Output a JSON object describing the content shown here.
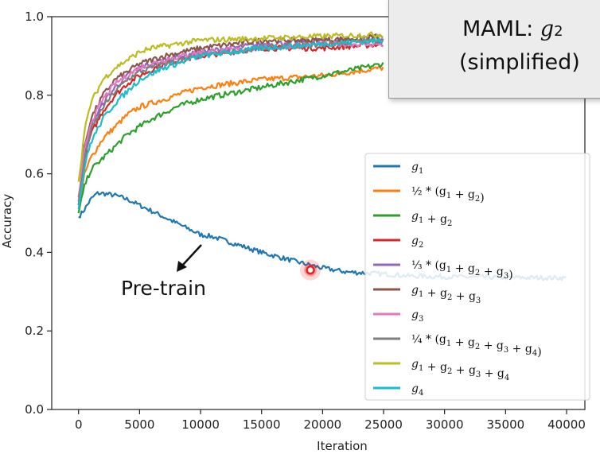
{
  "chart_data": {
    "type": "line",
    "xlabel": "Iteration",
    "ylabel": "Accuracy",
    "xlim": [
      -2200,
      41500
    ],
    "ylim": [
      0.0,
      1.0
    ],
    "x_ticks": [
      0,
      5000,
      10000,
      15000,
      20000,
      25000,
      30000,
      35000,
      40000
    ],
    "x_tick_labels": [
      "0",
      "5000",
      "10000",
      "15000",
      "20000",
      "25000",
      "30000",
      "35000",
      "40000"
    ],
    "y_ticks": [
      0.0,
      0.2,
      0.4,
      0.6,
      0.8,
      1.0
    ],
    "y_tick_labels": [
      "0.0",
      "0.2",
      "0.4",
      "0.6",
      "0.8",
      "1.0"
    ],
    "legend_position": "right",
    "series": [
      {
        "name": "g₁",
        "legend": [
          "g",
          "1",
          ""
        ],
        "color": "#1f77b4",
        "x": [
          0,
          500,
          1000,
          1500,
          2000,
          3000,
          4000,
          5000,
          7000,
          9000,
          10000,
          11000,
          12000,
          15000,
          18000,
          20000,
          22000,
          25000,
          27000,
          30000,
          35000,
          40000
        ],
        "y": [
          0.49,
          0.51,
          0.535,
          0.55,
          0.55,
          0.545,
          0.535,
          0.52,
          0.49,
          0.46,
          0.445,
          0.44,
          0.43,
          0.4,
          0.375,
          0.36,
          0.35,
          0.345,
          0.34,
          0.338,
          0.336,
          0.335
        ]
      },
      {
        "name": "½*(g₁+g₂)",
        "legend": [
          "½ * (g",
          "1",
          " + g",
          "2",
          ")"
        ],
        "color": "#ff7f0e",
        "x": [
          0,
          500,
          1000,
          2000,
          3000,
          4000,
          5000,
          7000,
          10000,
          15000,
          20000,
          25000
        ],
        "y": [
          0.5,
          0.6,
          0.64,
          0.69,
          0.72,
          0.75,
          0.77,
          0.79,
          0.82,
          0.84,
          0.85,
          0.87
        ]
      },
      {
        "name": "g₁+g₂",
        "legend": [
          "g",
          "1",
          " + g",
          "2",
          ""
        ],
        "color": "#2ca02c",
        "x": [
          0,
          500,
          1000,
          2000,
          3000,
          4000,
          5000,
          6000,
          8000,
          10000,
          15000,
          20000,
          25000
        ],
        "y": [
          0.5,
          0.57,
          0.61,
          0.64,
          0.67,
          0.7,
          0.72,
          0.74,
          0.77,
          0.79,
          0.82,
          0.85,
          0.88
        ]
      },
      {
        "name": "g₂",
        "legend": [
          "g",
          "2",
          ""
        ],
        "color": "#d62728",
        "x": [
          0,
          500,
          1000,
          2000,
          3000,
          4000,
          5000,
          7000,
          10000,
          15000,
          20000,
          25000
        ],
        "y": [
          0.52,
          0.64,
          0.7,
          0.76,
          0.8,
          0.83,
          0.85,
          0.88,
          0.9,
          0.92,
          0.92,
          0.93
        ]
      },
      {
        "name": "⅓*(g₁+g₂+g₃)",
        "legend": [
          "⅓ * (g",
          "1",
          " + g",
          "2",
          " + g",
          "3",
          ")"
        ],
        "color": "#9467bd",
        "x": [
          0,
          500,
          1000,
          2000,
          3000,
          4000,
          5000,
          7000,
          10000,
          15000,
          20000,
          25000
        ],
        "y": [
          0.53,
          0.65,
          0.72,
          0.78,
          0.82,
          0.85,
          0.87,
          0.89,
          0.91,
          0.93,
          0.94,
          0.94
        ]
      },
      {
        "name": "g₁+g₂+g₃",
        "legend": [
          "g",
          "1",
          " + g",
          "2",
          " + g",
          "3",
          ""
        ],
        "color": "#8c564b",
        "x": [
          0,
          500,
          1000,
          2000,
          3000,
          4000,
          5000,
          7000,
          10000,
          15000,
          20000,
          25000
        ],
        "y": [
          0.54,
          0.67,
          0.74,
          0.8,
          0.84,
          0.86,
          0.88,
          0.9,
          0.92,
          0.94,
          0.94,
          0.95
        ]
      },
      {
        "name": "g₃",
        "legend": [
          "g",
          "3",
          ""
        ],
        "color": "#e377c2",
        "x": [
          0,
          500,
          1000,
          2000,
          3000,
          4000,
          5000,
          7000,
          10000,
          15000,
          20000,
          25000
        ],
        "y": [
          0.53,
          0.66,
          0.73,
          0.79,
          0.83,
          0.85,
          0.87,
          0.89,
          0.91,
          0.92,
          0.93,
          0.93
        ]
      },
      {
        "name": "¼*(g₁+g₂+g₃+g₄)",
        "legend": [
          "¼ * (g",
          "1",
          " + g",
          "2",
          " + g",
          "3",
          " + g",
          "4",
          ")"
        ],
        "color": "#7f7f7f",
        "x": [
          0,
          500,
          1000,
          2000,
          3000,
          4000,
          5000,
          7000,
          10000,
          15000,
          20000,
          25000
        ],
        "y": [
          0.52,
          0.64,
          0.71,
          0.77,
          0.81,
          0.84,
          0.86,
          0.88,
          0.9,
          0.92,
          0.93,
          0.94
        ]
      },
      {
        "name": "g₁+g₂+g₃+g₄",
        "legend": [
          "g",
          "1",
          " + g",
          "2",
          " + g",
          "3",
          " + g",
          "4",
          ""
        ],
        "color": "#bcbd22",
        "x": [
          0,
          500,
          1000,
          2000,
          3000,
          4000,
          5000,
          6000,
          8000,
          10000,
          15000,
          20000,
          25000
        ],
        "y": [
          0.58,
          0.71,
          0.78,
          0.84,
          0.87,
          0.89,
          0.91,
          0.92,
          0.93,
          0.94,
          0.945,
          0.95,
          0.955
        ]
      },
      {
        "name": "g₄",
        "legend": [
          "g",
          "4",
          ""
        ],
        "color": "#17becf",
        "x": [
          0,
          500,
          1000,
          2000,
          3000,
          4000,
          5000,
          7000,
          10000,
          15000,
          20000,
          25000
        ],
        "y": [
          0.51,
          0.62,
          0.68,
          0.74,
          0.78,
          0.81,
          0.84,
          0.87,
          0.9,
          0.92,
          0.93,
          0.94
        ]
      }
    ],
    "annotations": {
      "pretrain_label": "Pre-train",
      "callout_prefix": "MAML: ",
      "callout_var": "g",
      "callout_sub": "2",
      "callout_line2": "(simplified)",
      "marker": {
        "x": 19000,
        "y": 0.355,
        "color": "#e8201c"
      }
    }
  }
}
